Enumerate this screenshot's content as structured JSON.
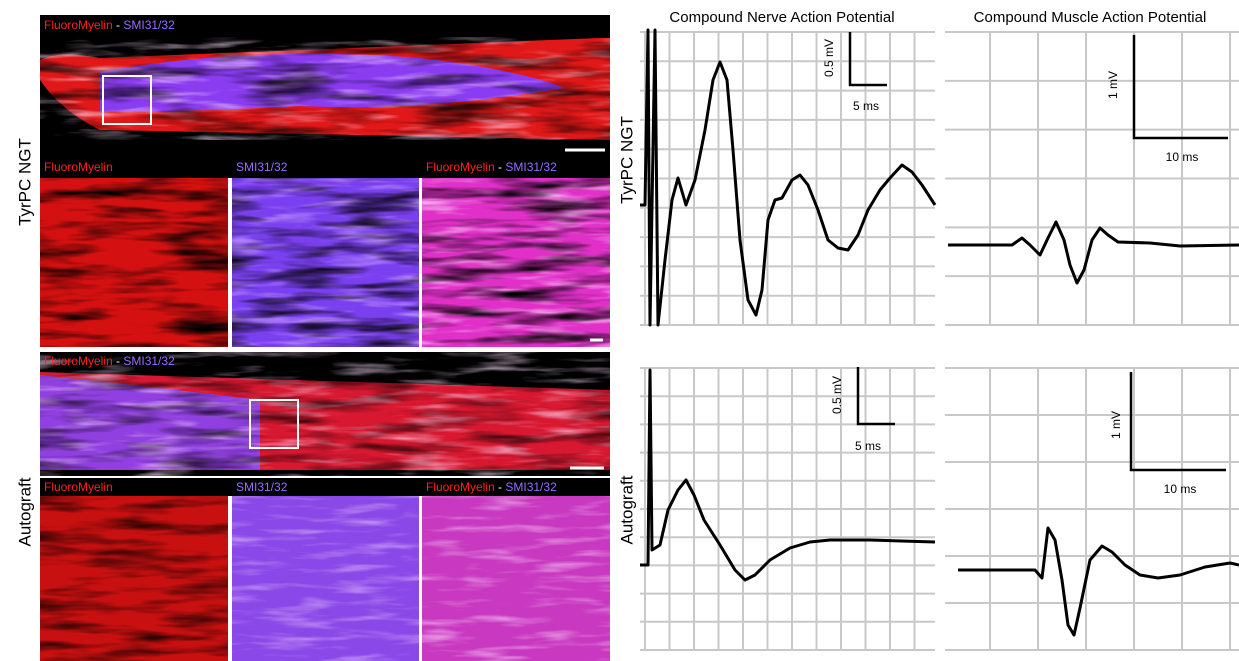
{
  "column_titles": [
    "Compound Nerve Action Potential",
    "Compound Muscle Action Potential"
  ],
  "stain_labels": {
    "myelin": "FluoroMyelin",
    "separator": " - ",
    "axon": "SMI31/32"
  },
  "rows": [
    {
      "label": "TyrPC NGT",
      "cnap_scale": {
        "amplitude": "0.5 mV",
        "time": "5 ms"
      },
      "cmap_scale": {
        "amplitude": "1 mV",
        "time": "10 ms"
      }
    },
    {
      "label": "Autograft",
      "cnap_scale": {
        "amplitude": "0.5 mV",
        "time": "5 ms"
      },
      "cmap_scale": {
        "amplitude": "1 mV",
        "time": "10 ms"
      }
    }
  ]
}
